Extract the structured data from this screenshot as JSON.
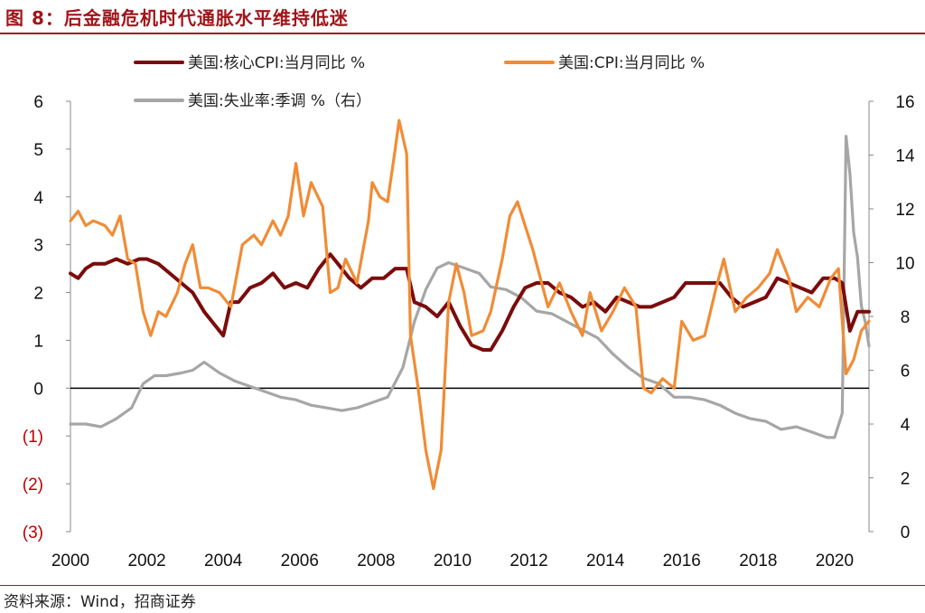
{
  "title": "图 8：后金融危机时代通胀水平维持低迷",
  "source": "资料来源：Wind，招商证券",
  "chart_data": {
    "type": "line",
    "x_range": [
      2000,
      2020.9
    ],
    "xticks": [
      "2000",
      "2002",
      "2004",
      "2006",
      "2008",
      "2010",
      "2012",
      "2014",
      "2016",
      "2018",
      "2020"
    ],
    "left_axis": {
      "range": [
        -3,
        6
      ],
      "ticks": [
        "6",
        "5",
        "4",
        "3",
        "2",
        "1",
        "0",
        "(1)",
        "(2)",
        "(3)"
      ]
    },
    "right_axis": {
      "range": [
        0,
        16
      ],
      "ticks": [
        "16",
        "14",
        "12",
        "10",
        "8",
        "6",
        "4",
        "2",
        "0"
      ]
    },
    "zero_line": true,
    "legend": {
      "placement": "top",
      "items": [
        {
          "label": "美国:核心CPI:当月同比 %",
          "color": "#7b0c0c"
        },
        {
          "label": "美国:CPI:当月同比 %",
          "color": "#f08c36"
        },
        {
          "label": "美国:失业率:季调 %（右）",
          "color": "#a6a6a6"
        }
      ]
    },
    "series": [
      {
        "name": "美国:核心CPI:当月同比 %",
        "axis": "left",
        "color": "#7b0c0c",
        "x": [
          2000.0,
          2000.2,
          2000.4,
          2000.6,
          2000.9,
          2001.2,
          2001.5,
          2001.8,
          2002.0,
          2002.3,
          2002.6,
          2002.9,
          2003.2,
          2003.5,
          2003.8,
          2004.0,
          2004.2,
          2004.4,
          2004.7,
          2005.0,
          2005.3,
          2005.6,
          2005.9,
          2006.2,
          2006.5,
          2006.8,
          2007.0,
          2007.3,
          2007.6,
          2007.9,
          2008.2,
          2008.5,
          2008.8,
          2009.0,
          2009.3,
          2009.6,
          2009.9,
          2010.2,
          2010.5,
          2010.8,
          2011.0,
          2011.3,
          2011.6,
          2011.9,
          2012.2,
          2012.5,
          2012.8,
          2013.1,
          2013.4,
          2013.7,
          2014.0,
          2014.3,
          2014.6,
          2014.9,
          2015.2,
          2015.5,
          2015.8,
          2016.1,
          2016.4,
          2016.7,
          2017.0,
          2017.3,
          2017.6,
          2017.9,
          2018.2,
          2018.5,
          2018.8,
          2019.1,
          2019.4,
          2019.7,
          2020.0,
          2020.2,
          2020.4,
          2020.6,
          2020.9
        ],
        "values": [
          2.4,
          2.3,
          2.5,
          2.6,
          2.6,
          2.7,
          2.6,
          2.7,
          2.7,
          2.6,
          2.4,
          2.2,
          2.0,
          1.6,
          1.3,
          1.1,
          1.8,
          1.8,
          2.1,
          2.2,
          2.4,
          2.1,
          2.2,
          2.1,
          2.5,
          2.8,
          2.6,
          2.3,
          2.1,
          2.3,
          2.3,
          2.5,
          2.5,
          1.8,
          1.7,
          1.5,
          1.8,
          1.3,
          0.9,
          0.8,
          0.8,
          1.2,
          1.7,
          2.1,
          2.2,
          2.2,
          2.0,
          1.9,
          1.7,
          1.8,
          1.6,
          1.9,
          1.8,
          1.7,
          1.7,
          1.8,
          1.9,
          2.2,
          2.2,
          2.2,
          2.2,
          1.9,
          1.7,
          1.8,
          1.9,
          2.3,
          2.2,
          2.1,
          2.0,
          2.3,
          2.3,
          2.2,
          1.2,
          1.6,
          1.6
        ]
      },
      {
        "name": "美国:CPI:当月同比 %",
        "axis": "left",
        "color": "#f08c36",
        "x": [
          2000.0,
          2000.2,
          2000.4,
          2000.6,
          2000.9,
          2001.1,
          2001.3,
          2001.5,
          2001.7,
          2001.9,
          2002.1,
          2002.3,
          2002.5,
          2002.8,
          2003.0,
          2003.2,
          2003.4,
          2003.6,
          2003.9,
          2004.2,
          2004.5,
          2004.8,
          2005.0,
          2005.3,
          2005.5,
          2005.7,
          2005.9,
          2006.1,
          2006.3,
          2006.6,
          2006.8,
          2007.0,
          2007.2,
          2007.5,
          2007.8,
          2007.9,
          2008.1,
          2008.3,
          2008.5,
          2008.6,
          2008.8,
          2008.9,
          2009.1,
          2009.3,
          2009.5,
          2009.7,
          2009.9,
          2010.1,
          2010.3,
          2010.5,
          2010.8,
          2011.0,
          2011.3,
          2011.5,
          2011.7,
          2011.9,
          2012.1,
          2012.3,
          2012.5,
          2012.8,
          2013.1,
          2013.4,
          2013.6,
          2013.9,
          2014.2,
          2014.5,
          2014.8,
          2015.0,
          2015.2,
          2015.5,
          2015.8,
          2016.0,
          2016.3,
          2016.6,
          2016.9,
          2017.1,
          2017.4,
          2017.7,
          2018.0,
          2018.3,
          2018.5,
          2018.8,
          2019.0,
          2019.3,
          2019.6,
          2019.9,
          2020.1,
          2020.3,
          2020.5,
          2020.7,
          2020.9
        ],
        "values": [
          3.5,
          3.7,
          3.4,
          3.5,
          3.4,
          3.2,
          3.6,
          2.7,
          2.6,
          1.6,
          1.1,
          1.6,
          1.5,
          2.0,
          2.6,
          3.0,
          2.1,
          2.1,
          2.0,
          1.7,
          3.0,
          3.2,
          3.0,
          3.5,
          3.2,
          3.6,
          4.7,
          3.6,
          4.3,
          3.8,
          2.0,
          2.1,
          2.7,
          2.2,
          3.5,
          4.3,
          4.0,
          3.9,
          5.0,
          5.6,
          4.9,
          1.1,
          0.0,
          -1.3,
          -2.1,
          -1.3,
          1.8,
          2.6,
          2.0,
          1.1,
          1.2,
          1.6,
          2.7,
          3.6,
          3.9,
          3.4,
          2.9,
          2.3,
          1.7,
          2.2,
          1.6,
          1.1,
          2.0,
          1.2,
          1.6,
          2.1,
          1.7,
          0.0,
          -0.1,
          0.2,
          0.0,
          1.4,
          1.0,
          1.1,
          2.1,
          2.7,
          1.6,
          1.9,
          2.1,
          2.4,
          2.9,
          2.3,
          1.6,
          1.9,
          1.7,
          2.3,
          2.5,
          0.3,
          0.6,
          1.2,
          1.4
        ]
      },
      {
        "name": "美国:失业率:季调 %（右）",
        "axis": "right",
        "color": "#a6a6a6",
        "x": [
          2000.0,
          2000.4,
          2000.8,
          2001.2,
          2001.6,
          2001.9,
          2002.2,
          2002.5,
          2002.9,
          2003.2,
          2003.5,
          2003.9,
          2004.3,
          2004.7,
          2005.1,
          2005.5,
          2005.9,
          2006.3,
          2006.7,
          2007.1,
          2007.5,
          2007.9,
          2008.3,
          2008.7,
          2009.0,
          2009.3,
          2009.6,
          2009.9,
          2010.3,
          2010.7,
          2011.0,
          2011.4,
          2011.8,
          2012.2,
          2012.6,
          2013.0,
          2013.4,
          2013.8,
          2014.2,
          2014.6,
          2015.0,
          2015.4,
          2015.8,
          2016.2,
          2016.6,
          2017.0,
          2017.4,
          2017.8,
          2018.2,
          2018.6,
          2019.0,
          2019.4,
          2019.8,
          2020.0,
          2020.2,
          2020.3,
          2020.4,
          2020.5,
          2020.6,
          2020.7,
          2020.8,
          2020.9
        ],
        "values": [
          4.0,
          4.0,
          3.9,
          4.2,
          4.6,
          5.5,
          5.8,
          5.8,
          5.9,
          6.0,
          6.3,
          5.9,
          5.6,
          5.4,
          5.2,
          5.0,
          4.9,
          4.7,
          4.6,
          4.5,
          4.6,
          4.8,
          5.0,
          6.1,
          7.8,
          9.0,
          9.8,
          10.0,
          9.8,
          9.6,
          9.1,
          9.0,
          8.7,
          8.2,
          8.1,
          7.8,
          7.5,
          7.2,
          6.6,
          6.1,
          5.7,
          5.5,
          5.0,
          5.0,
          4.9,
          4.7,
          4.4,
          4.2,
          4.1,
          3.8,
          3.9,
          3.7,
          3.5,
          3.5,
          4.4,
          14.7,
          13.3,
          11.1,
          10.2,
          8.4,
          7.8,
          6.9
        ]
      }
    ]
  }
}
